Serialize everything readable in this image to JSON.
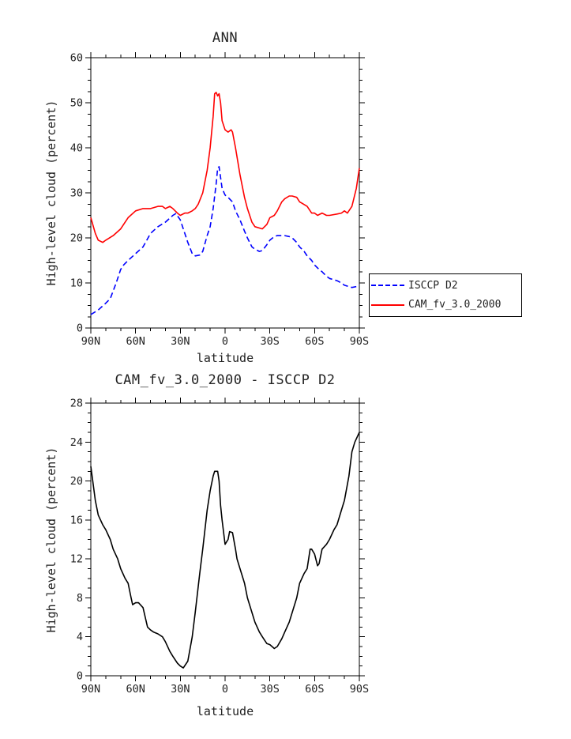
{
  "page": {
    "background": "#ffffff",
    "text_color": "#222222"
  },
  "chart_data": [
    {
      "type": "line",
      "title": "ANN",
      "xlabel": "latitude",
      "ylabel": "High-level cloud (percent)",
      "xlim": [
        90,
        -90
      ],
      "ylim": [
        0,
        60
      ],
      "ytick_step": 10,
      "yminor_step": 2.5,
      "xticks": {
        "labels": [
          "90N",
          "60N",
          "30N",
          "0",
          "30S",
          "60S",
          "90S"
        ],
        "lats": [
          90,
          60,
          30,
          0,
          -30,
          -60,
          -90
        ],
        "minor_step": 10
      },
      "grid": false,
      "legend_position": "outside-right",
      "series": [
        {
          "name": "ISCCP D2",
          "color": "#0000ff",
          "style": "dashed",
          "dash": "7 4",
          "x": [
            90,
            85,
            80,
            77,
            73,
            70,
            68,
            65,
            60,
            55,
            50,
            45,
            40,
            35,
            33,
            30,
            25,
            22,
            20,
            17,
            15,
            12,
            10,
            8,
            6,
            5,
            4,
            2,
            0,
            -2,
            -4,
            -5,
            -7,
            -10,
            -13,
            -15,
            -18,
            -20,
            -23,
            -25,
            -28,
            -30,
            -33,
            -35,
            -40,
            -43,
            -45,
            -48,
            -50,
            -53,
            -55,
            -58,
            -60,
            -63,
            -65,
            -68,
            -70,
            -73,
            -75,
            -78,
            -80,
            -83,
            -85,
            -88,
            -90
          ],
          "y": [
            3,
            4,
            5.5,
            6.5,
            10,
            13,
            14,
            15,
            16.5,
            18,
            21,
            22.5,
            23.5,
            25,
            25.4,
            24,
            19,
            16.5,
            16,
            16.2,
            17,
            20.5,
            22.5,
            26.5,
            32,
            35.5,
            35.8,
            31,
            29.5,
            29,
            28.3,
            28,
            26,
            24,
            21.5,
            20,
            18,
            17.5,
            17,
            17.2,
            18.5,
            19.5,
            20.3,
            20.5,
            20.5,
            20.3,
            20,
            19,
            18,
            17,
            16,
            15,
            14,
            13,
            12.5,
            11.5,
            11,
            10.7,
            10.5,
            10,
            9.5,
            9.2,
            9,
            9.2,
            9.5
          ]
        },
        {
          "name": "CAM_fv_3.0_2000",
          "color": "#ff0000",
          "style": "solid",
          "dash": "",
          "x": [
            90,
            87,
            85,
            82,
            80,
            75,
            70,
            65,
            60,
            55,
            50,
            45,
            42,
            40,
            37,
            35,
            32,
            30,
            27,
            25,
            22,
            20,
            18,
            15,
            12,
            10,
            8,
            7,
            6,
            5,
            4,
            3,
            2,
            0,
            -2,
            -4,
            -5,
            -7,
            -10,
            -13,
            -15,
            -18,
            -20,
            -25,
            -28,
            -30,
            -33,
            -35,
            -38,
            -40,
            -43,
            -45,
            -48,
            -50,
            -55,
            -58,
            -60,
            -62,
            -65,
            -68,
            -70,
            -75,
            -78,
            -80,
            -82,
            -85,
            -88,
            -90
          ],
          "y": [
            24.5,
            21,
            19.5,
            19,
            19.5,
            20.5,
            22,
            24.5,
            26,
            26.5,
            26.5,
            27,
            27,
            26.5,
            27,
            26.5,
            25.5,
            25,
            25.5,
            25.5,
            26,
            26.5,
            27.5,
            30,
            35,
            40,
            47,
            52,
            52.3,
            51.5,
            52,
            50,
            46,
            44,
            43.5,
            44,
            43.5,
            40,
            34,
            29,
            26.5,
            23.5,
            22.5,
            22,
            23,
            24.5,
            25,
            26,
            28,
            28.7,
            29.3,
            29.3,
            29,
            28,
            27,
            25.5,
            25.5,
            25,
            25.5,
            25,
            25,
            25.3,
            25.5,
            26,
            25.5,
            27,
            31,
            35.5
          ]
        }
      ]
    },
    {
      "type": "line",
      "title": "CAM_fv_3.0_2000 - ISCCP D2",
      "xlabel": "latitude",
      "ylabel": "High-level cloud (percent)",
      "xlim": [
        90,
        -90
      ],
      "ylim": [
        0,
        28
      ],
      "ytick_step": 4,
      "yminor_step": 1,
      "xticks": {
        "labels": [
          "90N",
          "60N",
          "30N",
          "0",
          "30S",
          "60S",
          "90S"
        ],
        "lats": [
          90,
          60,
          30,
          0,
          -30,
          -60,
          -90
        ],
        "minor_step": 10
      },
      "grid": false,
      "series": [
        {
          "name": "CAM_fv_3.0_2000 - ISCCP D2",
          "color": "#000000",
          "style": "solid",
          "dash": "",
          "x": [
            90,
            87,
            85,
            82,
            80,
            77,
            75,
            72,
            70,
            67,
            65,
            63,
            62,
            60,
            58,
            55,
            52,
            50,
            48,
            45,
            42,
            40,
            37,
            35,
            32,
            30,
            28,
            25,
            22,
            20,
            17,
            15,
            12,
            10,
            8,
            7,
            5,
            4,
            3,
            2,
            0,
            -2,
            -3,
            -5,
            -7,
            -8,
            -10,
            -13,
            -15,
            -18,
            -20,
            -23,
            -25,
            -28,
            -30,
            -33,
            -35,
            -38,
            -40,
            -43,
            -45,
            -48,
            -50,
            -53,
            -55,
            -57,
            -58,
            -60,
            -62,
            -63,
            -65,
            -68,
            -70,
            -73,
            -75,
            -78,
            -80,
            -83,
            -85,
            -87,
            -90
          ],
          "y": [
            21.5,
            18,
            16.5,
            15.5,
            15,
            14,
            13,
            12,
            11,
            10,
            9.5,
            8,
            7.3,
            7.5,
            7.5,
            7,
            5,
            4.7,
            4.5,
            4.3,
            4,
            3.5,
            2.5,
            2,
            1.3,
            1,
            0.8,
            1.5,
            4,
            6.5,
            10.5,
            13,
            17,
            19,
            20.5,
            21,
            21,
            20,
            17.5,
            16,
            13.5,
            14,
            14.8,
            14.7,
            13,
            12,
            11,
            9.5,
            8,
            6.5,
            5.5,
            4.5,
            4,
            3.3,
            3.2,
            2.8,
            3,
            3.8,
            4.5,
            5.5,
            6.5,
            8,
            9.5,
            10.5,
            11,
            13,
            13,
            12.5,
            11.3,
            11.5,
            13,
            13.5,
            14,
            15,
            15.5,
            17,
            18,
            20.5,
            23,
            24,
            25
          ]
        }
      ]
    }
  ]
}
